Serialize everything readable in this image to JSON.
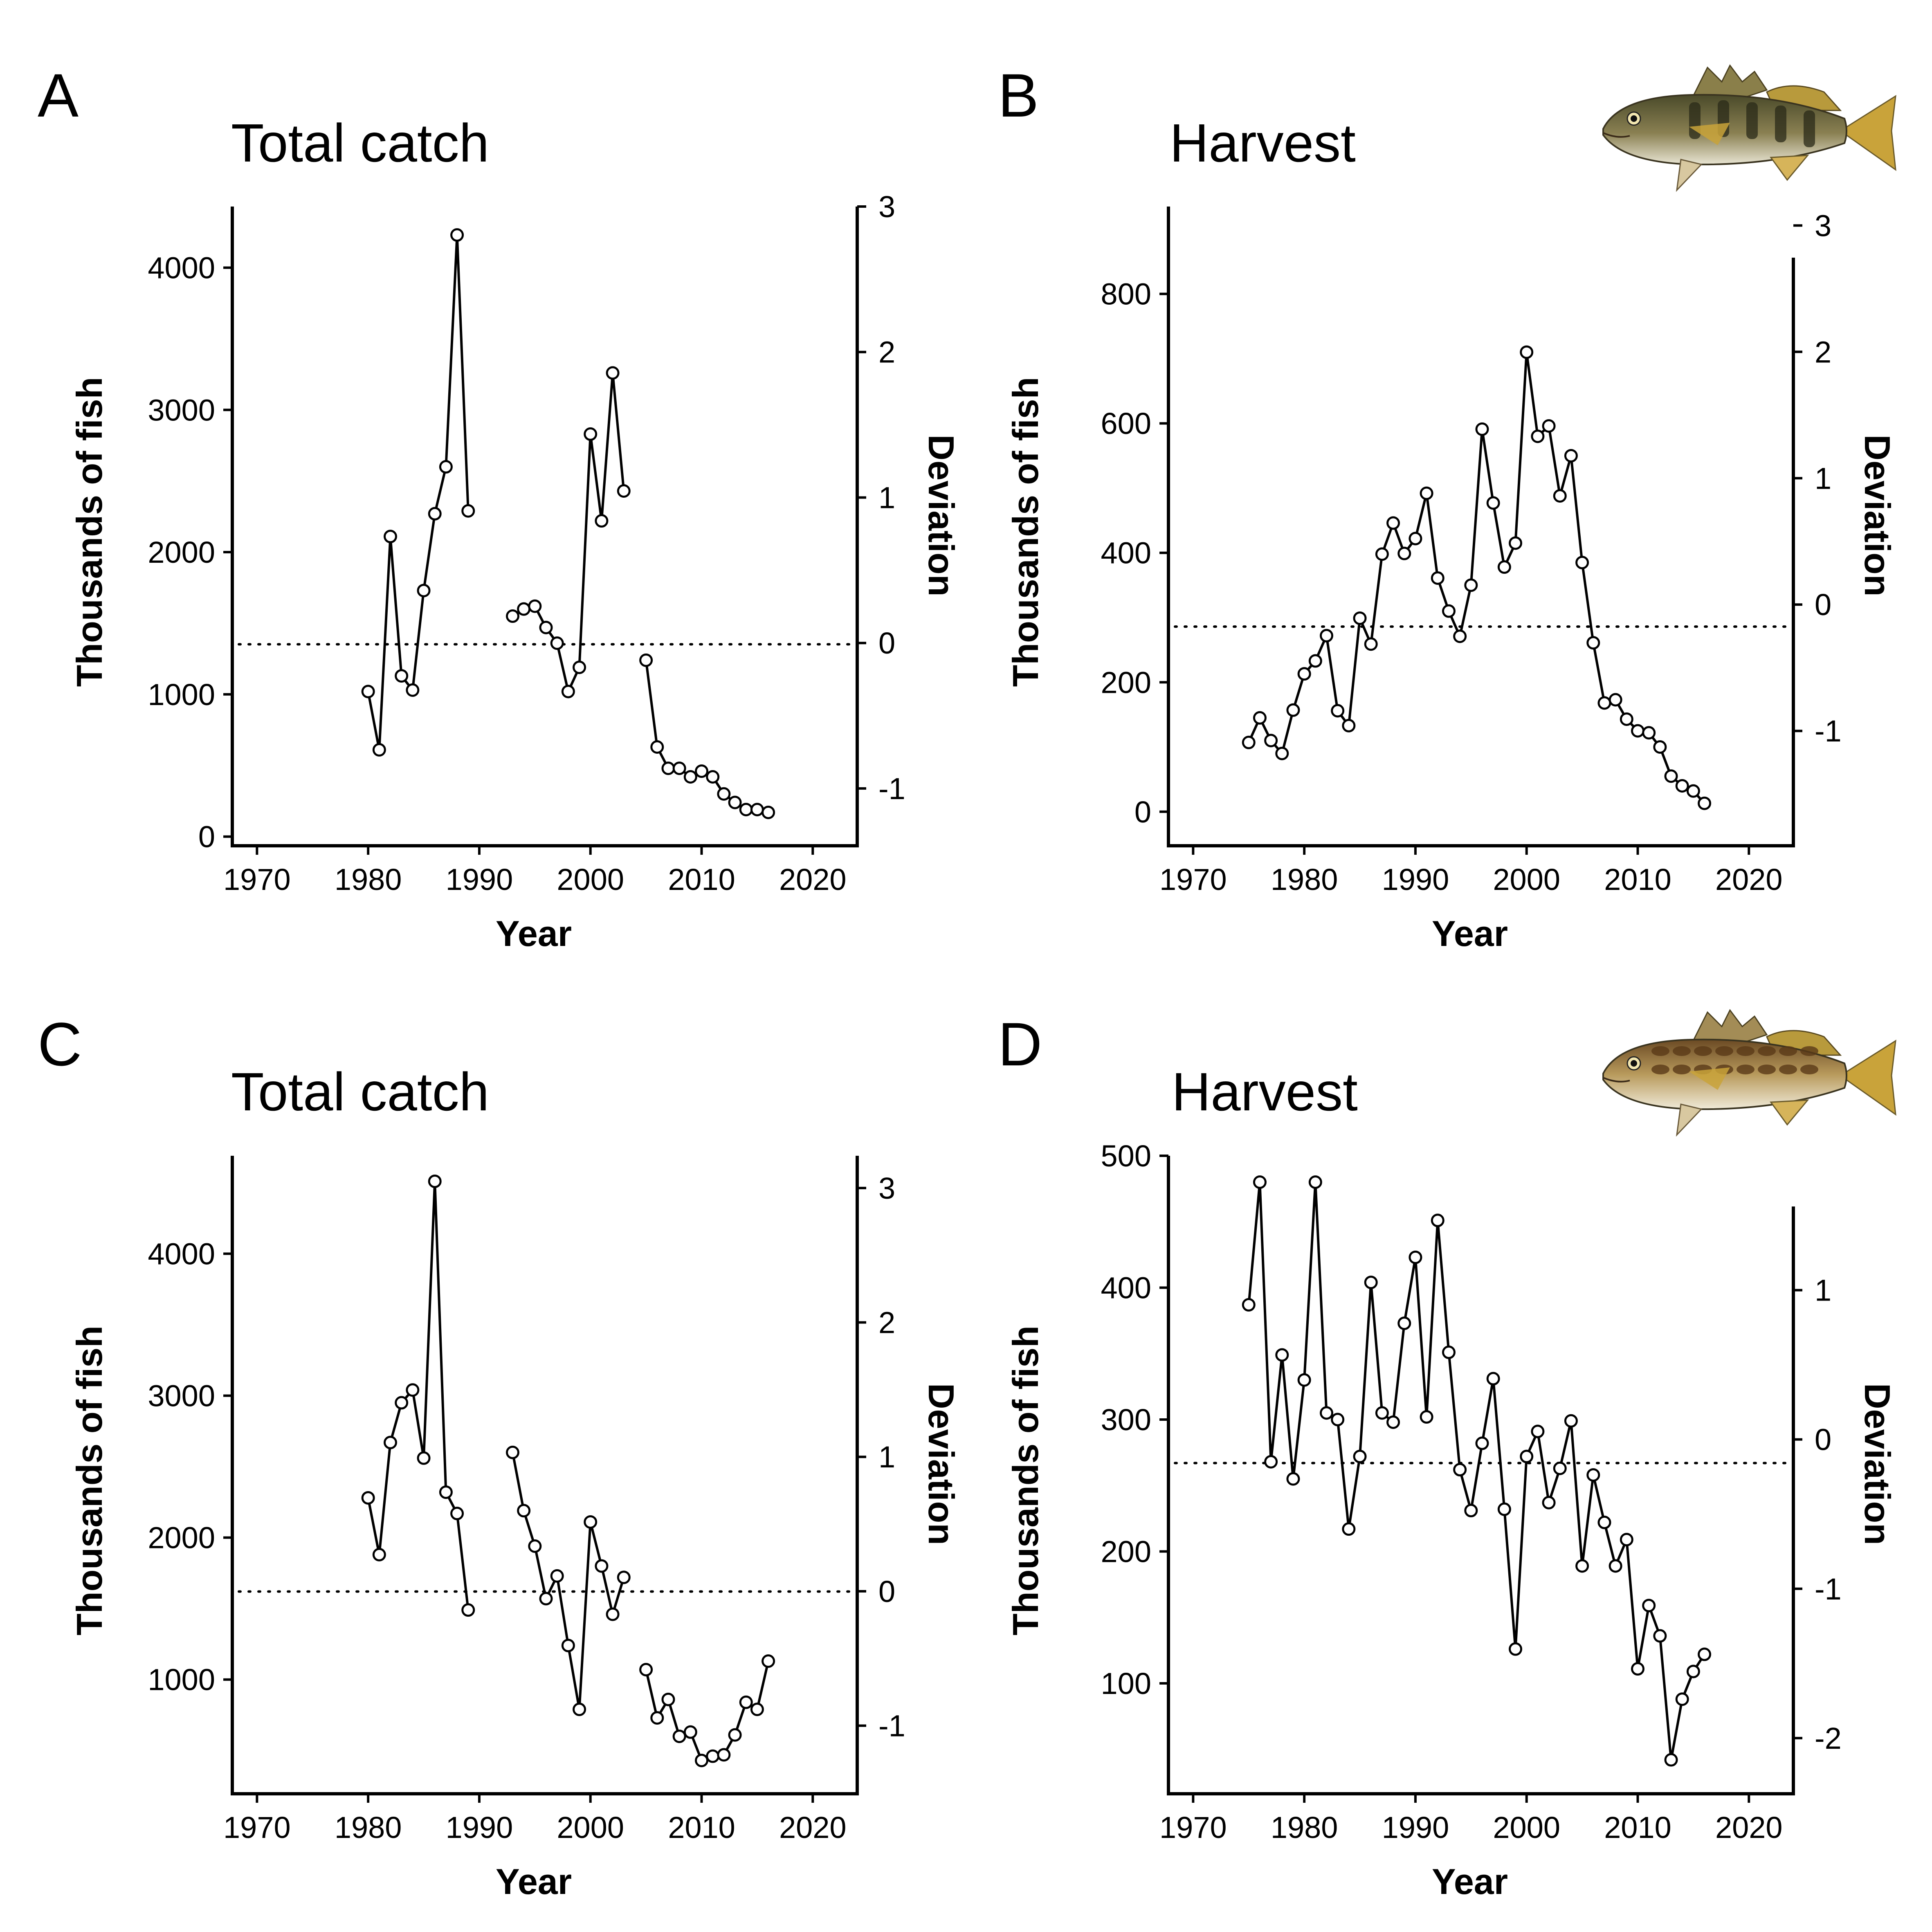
{
  "chart_data": [
    {
      "panel": "A",
      "title": "Total catch",
      "type": "line",
      "xlabel": "Year",
      "ylabel": "Thousands of fish",
      "y2label": "Deviation",
      "xlim": [
        1968,
        2024
      ],
      "ylim": [
        -30,
        4430
      ],
      "y2lim": [
        -1.36,
        3.0
      ],
      "xticks": [
        1970,
        1980,
        1990,
        2000,
        2010,
        2020
      ],
      "yticks": [
        0,
        1000,
        2000,
        3000,
        4000
      ],
      "y2ticks": [
        -1,
        0,
        1,
        2,
        3
      ],
      "reference_line": 1352,
      "segments": [
        {
          "x": [
            1980,
            1981,
            1982,
            1983,
            1984,
            1985,
            1986,
            1987,
            1988,
            1989
          ],
          "y": [
            1020,
            610,
            2110,
            1130,
            1030,
            1730,
            2270,
            2600,
            4230,
            2290
          ]
        },
        {
          "x": [
            1993,
            1994,
            1995,
            1996,
            1997,
            1998,
            1999,
            2000,
            2001,
            2002,
            2003
          ],
          "y": [
            1550,
            1600,
            1620,
            1470,
            1360,
            1020,
            1190,
            2830,
            2220,
            3260,
            2430
          ]
        },
        {
          "x": [
            2005,
            2006,
            2007,
            2008,
            2009,
            2010,
            2011,
            2012,
            2013,
            2014,
            2015,
            2016
          ],
          "y": [
            1240,
            630,
            480,
            480,
            420,
            460,
            420,
            300,
            240,
            190,
            190,
            170
          ]
        }
      ],
      "image": null
    },
    {
      "panel": "B",
      "title": "Harvest",
      "type": "line",
      "xlabel": "Year",
      "ylabel": "Thousands of fish",
      "y2label": "Deviation",
      "xlim": [
        1968,
        2024
      ],
      "ylim": [
        -45,
        935
      ],
      "y2lim": [
        -1.87,
        3.15
      ],
      "xticks": [
        1970,
        1980,
        1990,
        2000,
        2010,
        2020
      ],
      "yticks": [
        0,
        200,
        400,
        600,
        800
      ],
      "y2ticks": [
        -1,
        0,
        1,
        2,
        3
      ],
      "reference_line": 286,
      "segments": [
        {
          "x": [
            1975,
            1976,
            1977,
            1978,
            1979,
            1980,
            1981,
            1982,
            1983,
            1984,
            1985,
            1986,
            1987,
            1988,
            1989,
            1990,
            1991,
            1992,
            1993,
            1994,
            1995,
            1996,
            1997,
            1998,
            1999,
            2000,
            2001,
            2002,
            2003,
            2004,
            2005,
            2006,
            2007,
            2008,
            2009,
            2010,
            2011,
            2012,
            2013,
            2014,
            2015,
            2016
          ],
          "y": [
            107,
            145,
            110,
            90,
            157,
            213,
            233,
            272,
            156,
            133,
            299,
            259,
            398,
            446,
            399,
            422,
            492,
            361,
            310,
            271,
            350,
            591,
            477,
            378,
            415,
            710,
            580,
            596,
            488,
            550,
            385,
            261,
            168,
            173,
            143,
            125,
            122,
            100,
            55,
            40,
            32,
            13
          ]
        }
      ],
      "image": "kelp bass illustration"
    },
    {
      "panel": "C",
      "title": "Total catch",
      "type": "line",
      "xlabel": "Year",
      "ylabel": "Thousands of fish",
      "y2label": "Deviation",
      "xlim": [
        1968,
        2024
      ],
      "ylim": [
        230,
        4690
      ],
      "y2lim": [
        -1.47,
        3.24
      ],
      "xticks": [
        1970,
        1980,
        1990,
        2000,
        2010,
        2020
      ],
      "yticks": [
        1000,
        2000,
        3000,
        4000
      ],
      "y2ticks": [
        -1,
        0,
        1,
        2,
        3
      ],
      "reference_line": 1620,
      "segments": [
        {
          "x": [
            1980,
            1981,
            1982,
            1983,
            1984,
            1985,
            1986,
            1987,
            1988,
            1989
          ],
          "y": [
            2280,
            1880,
            2670,
            2950,
            3040,
            2560,
            4510,
            2320,
            2170,
            1490
          ]
        },
        {
          "x": [
            1993,
            1994,
            1995,
            1996,
            1997,
            1998,
            1999,
            2000,
            2001,
            2002,
            2003
          ],
          "y": [
            2600,
            2190,
            1940,
            1570,
            1730,
            1240,
            790,
            2110,
            1800,
            1460,
            1720
          ]
        },
        {
          "x": [
            2005,
            2006,
            2007,
            2008,
            2009,
            2010,
            2011,
            2012,
            2013,
            2014,
            2015,
            2016
          ],
          "y": [
            1070,
            730,
            860,
            600,
            630,
            430,
            460,
            470,
            610,
            840,
            790,
            1130
          ]
        }
      ],
      "image": null
    },
    {
      "panel": "D",
      "title": "Harvest",
      "type": "line",
      "xlabel": "Year",
      "ylabel": "Thousands of fish",
      "y2label": "Deviation",
      "xlim": [
        1968,
        2024
      ],
      "ylim": [
        20,
        500
      ],
      "y2lim": [
        -2.34,
        1.9
      ],
      "xticks": [
        1970,
        1980,
        1990,
        2000,
        2010,
        2020
      ],
      "yticks": [
        100,
        200,
        300,
        400,
        500
      ],
      "y2ticks": [
        -2,
        -1,
        0,
        1
      ],
      "reference_line": 267,
      "segments": [
        {
          "x": [
            1975,
            1976,
            1977,
            1978,
            1979,
            1980,
            1981,
            1982,
            1983,
            1984,
            1985,
            1986,
            1987,
            1988,
            1989,
            1990,
            1991,
            1992,
            1993,
            1994,
            1995,
            1996,
            1997,
            1998,
            1999,
            2000,
            2001,
            2002,
            2003,
            2004,
            2005,
            2006,
            2007,
            2008,
            2009,
            2010,
            2011,
            2012,
            2013,
            2014,
            2015,
            2016
          ],
          "y": [
            387,
            480,
            268,
            349,
            255,
            330,
            480,
            305,
            300,
            217,
            272,
            404,
            305,
            298,
            373,
            423,
            302,
            451,
            351,
            262,
            231,
            282,
            331,
            232,
            126,
            272,
            291,
            237,
            263,
            299,
            189,
            258,
            222,
            189,
            209,
            111,
            159,
            136,
            42,
            88,
            109,
            122
          ]
        }
      ],
      "image": "spotted sand bass illustration"
    }
  ]
}
